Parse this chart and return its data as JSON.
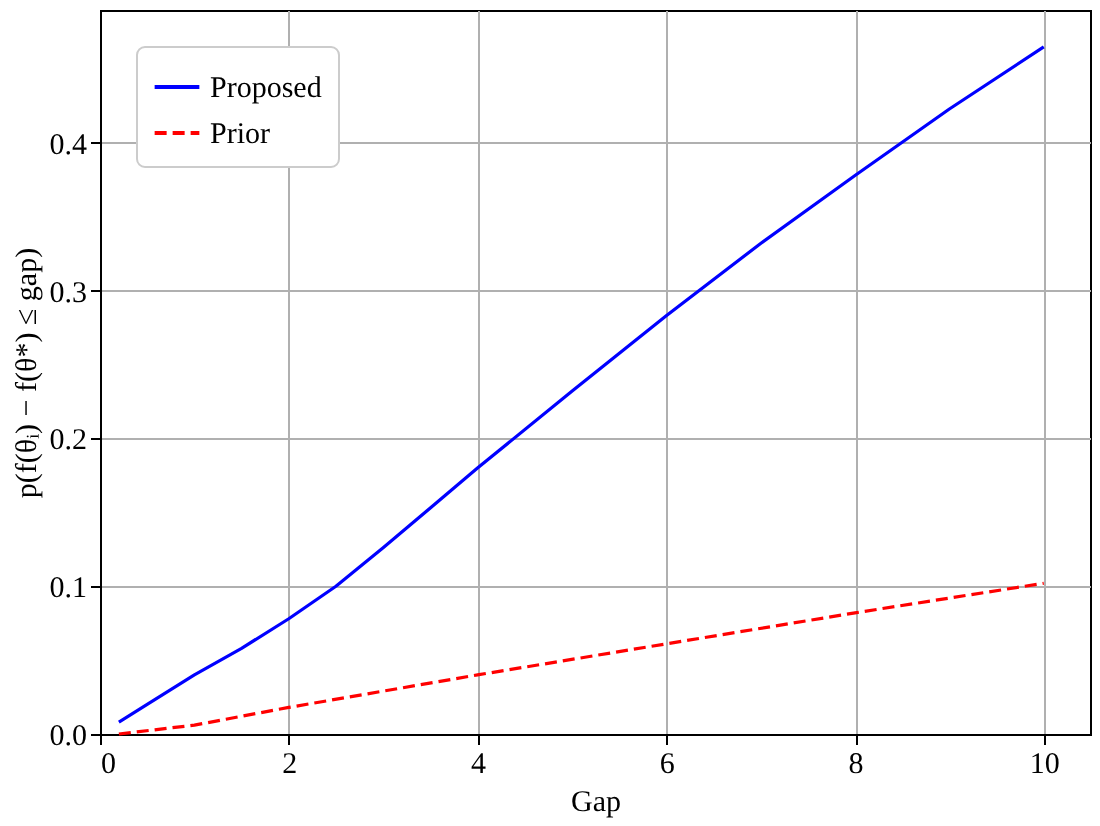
{
  "chart_data": {
    "type": "line",
    "xlabel": "Gap",
    "ylabel": "p(f(θᵢ) − f(θ*) ≤ gap)",
    "xlim": [
      0,
      10.49
    ],
    "ylim": [
      0,
      0.49
    ],
    "xticks": [
      0,
      2,
      4,
      6,
      8,
      10
    ],
    "yticks": [
      {
        "value": 0,
        "label": "0.0"
      },
      {
        "value": 0.1,
        "label": "0.1"
      },
      {
        "value": 0.2,
        "label": "0.2"
      },
      {
        "value": 0.3,
        "label": "0.3"
      },
      {
        "value": 0.4,
        "label": "0.4"
      }
    ],
    "grid": true,
    "legend": "top left",
    "marker": "none",
    "series": [
      {
        "name": "Proposed",
        "color": "#0000ff",
        "line_style": "solid",
        "x": [
          0.2,
          0.5,
          1,
          1.5,
          2,
          2.5,
          3,
          3.5,
          4,
          5,
          6,
          7,
          8,
          9,
          10
        ],
        "values": [
          0.008,
          0.02,
          0.04,
          0.058,
          0.078,
          0.1,
          0.126,
          0.153,
          0.18,
          0.232,
          0.283,
          0.332,
          0.378,
          0.423,
          0.465
        ]
      },
      {
        "name": "Prior",
        "color": "#ff0000",
        "line_style": "dashed",
        "x": [
          0.2,
          1,
          2,
          4,
          6,
          8,
          10
        ],
        "values": [
          0.0,
          0.006,
          0.018,
          0.04,
          0.061,
          0.082,
          0.102
        ]
      }
    ]
  }
}
